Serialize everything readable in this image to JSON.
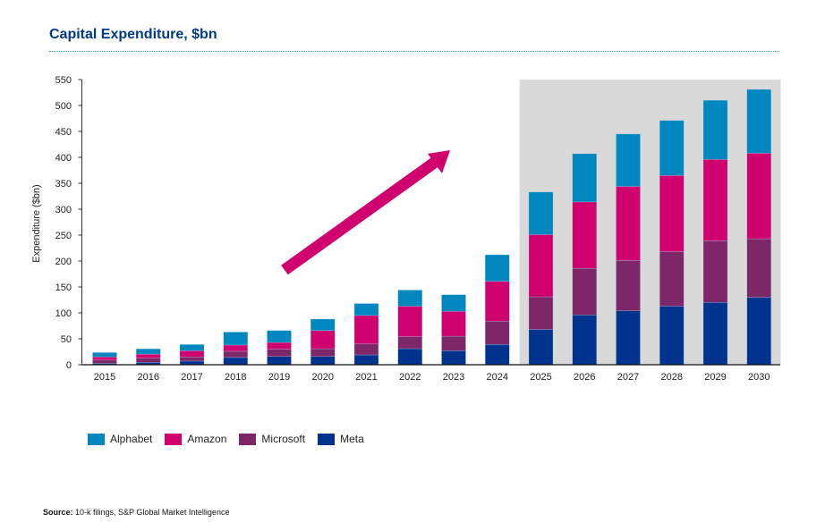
{
  "title": "Capital Expenditure, $bn",
  "source_label": "Source:",
  "source_text": "10-k filings, S&P Global Market Intelligence",
  "chart_data": {
    "type": "bar",
    "stacked": true,
    "title": "Capital Expenditure, $bn",
    "xlabel": "",
    "ylabel": "Expenditure ($bn)",
    "ylim": [
      0,
      550
    ],
    "yticks": [
      0,
      50,
      100,
      150,
      200,
      250,
      300,
      350,
      400,
      450,
      500,
      550
    ],
    "grid": false,
    "legend_position": "bottom-left",
    "shaded_forecast_categories": [
      "2025",
      "2026",
      "2027",
      "2028",
      "2029",
      "2030"
    ],
    "shade_color": "#d9d9d9",
    "annotation": "upward-trend-arrow",
    "arrow_color": "#d0006f",
    "categories": [
      "2015",
      "2016",
      "2017",
      "2018",
      "2019",
      "2020",
      "2021",
      "2022",
      "2023",
      "2024",
      "2025",
      "2026",
      "2027",
      "2028",
      "2029",
      "2030"
    ],
    "series": [
      {
        "name": "Meta",
        "color": "#00338d",
        "values": [
          2.5,
          4.5,
          7,
          14,
          16,
          16,
          19,
          31,
          27,
          39,
          68,
          96,
          104,
          113,
          120,
          130
        ]
      },
      {
        "name": "Microsoft",
        "color": "#7d2768",
        "values": [
          6.5,
          8,
          8,
          12,
          14,
          15,
          21,
          23,
          28,
          45,
          63,
          90,
          97,
          105,
          119,
          113
        ]
      },
      {
        "name": "Amazon",
        "color": "#d0006f",
        "values": [
          6,
          8,
          12,
          12,
          13,
          35,
          55,
          59,
          48,
          77,
          120,
          128,
          143,
          147,
          157,
          165
        ]
      },
      {
        "name": "Alphabet",
        "color": "#0087bf",
        "values": [
          8.5,
          10,
          12,
          25,
          23,
          22,
          23,
          31,
          32,
          51,
          82,
          93,
          101,
          106,
          114,
          123
        ]
      }
    ],
    "legend_order": [
      "Alphabet",
      "Amazon",
      "Microsoft",
      "Meta"
    ]
  }
}
